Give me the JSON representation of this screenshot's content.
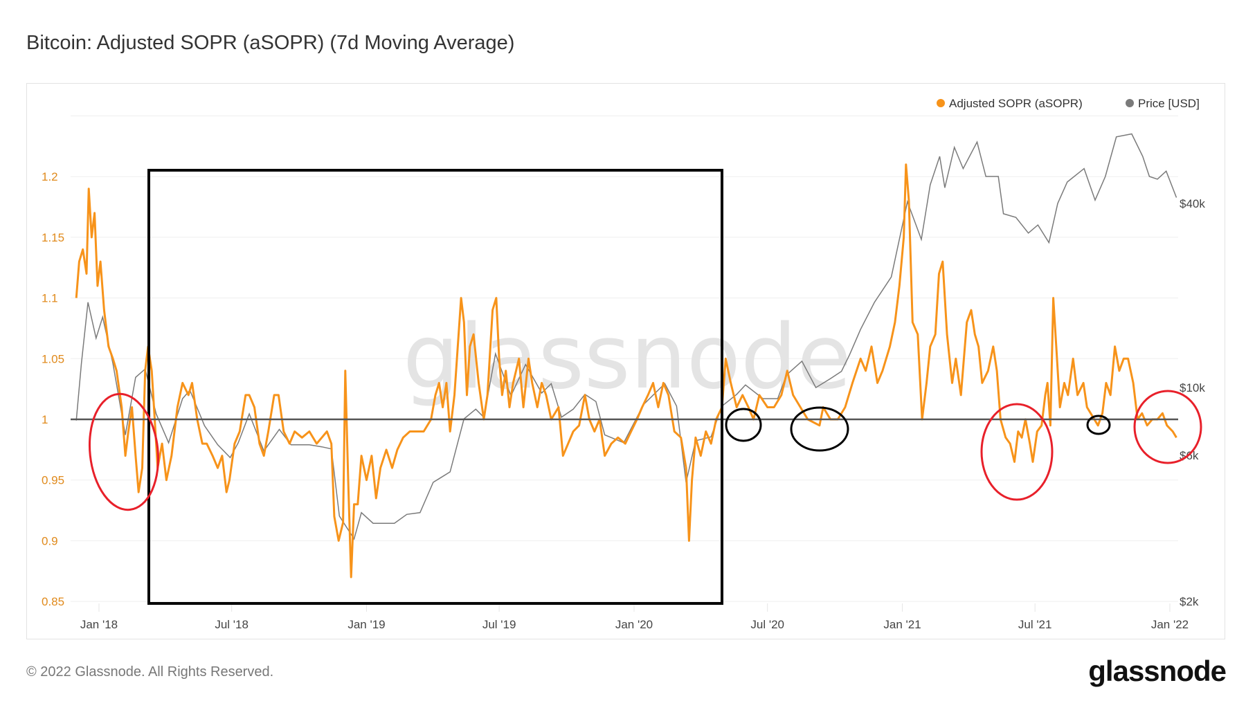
{
  "title": "Bitcoin: Adjusted SOPR (aSOPR) (7d Moving Average)",
  "footer": {
    "copyright": "© 2022 Glassnode. All Rights Reserved.",
    "logo": "glassnode"
  },
  "watermark": "glassnode",
  "colors": {
    "sopr": "#F7931A",
    "price": "#7a7a7a",
    "baseline": "#555555",
    "annotation_box": "#000000",
    "annotation_red": "#e8202a",
    "annotation_black": "#000000"
  },
  "chart_data": {
    "type": "line",
    "title": "Bitcoin: Adjusted SOPR (aSOPR) (7d Moving Average)",
    "legend": {
      "placement": "top-right",
      "items": [
        "Adjusted SOPR (aSOPR)",
        "Price [USD]"
      ]
    },
    "x_ticks": [
      "Jan '18",
      "Jul '18",
      "Jan '19",
      "Jul '19",
      "Jan '20",
      "Jul '20",
      "Jan '21",
      "Jul '21",
      "Jan '22"
    ],
    "x_tick_dates": [
      "2018-01-01",
      "2018-07-01",
      "2019-01-01",
      "2019-07-01",
      "2020-01-01",
      "2020-07-01",
      "2021-01-01",
      "2021-07-01",
      "2022-01-01"
    ],
    "xlim": [
      "2017-12-01",
      "2022-01-12"
    ],
    "y_left": {
      "ticks": [
        "0.85",
        "0.9",
        "0.95",
        "1",
        "1.05",
        "1.1",
        "1.15",
        "1.2"
      ],
      "ylim": [
        0.85,
        1.25
      ],
      "scale": "linear"
    },
    "y_right": {
      "ticks": [
        "$2k",
        "$6k",
        "$10k",
        "$40k"
      ],
      "tick_values": [
        2000,
        6000,
        10000,
        40000
      ],
      "scale": "log"
    },
    "reference_line": 1,
    "grid": true,
    "series": [
      {
        "name": "Adjusted SOPR (aSOPR)",
        "axis": "left",
        "x": [
          "2017-12-01",
          "2017-12-05",
          "2017-12-10",
          "2017-12-15",
          "2017-12-18",
          "2017-12-22",
          "2017-12-26",
          "2017-12-30",
          "2018-01-03",
          "2018-01-08",
          "2018-01-14",
          "2018-01-20",
          "2018-01-25",
          "2018-02-01",
          "2018-02-06",
          "2018-02-10",
          "2018-02-15",
          "2018-02-20",
          "2018-02-24",
          "2018-03-01",
          "2018-03-05",
          "2018-03-09",
          "2018-03-14",
          "2018-03-18",
          "2018-03-22",
          "2018-03-28",
          "2018-04-03",
          "2018-04-10",
          "2018-04-18",
          "2018-04-25",
          "2018-05-03",
          "2018-05-08",
          "2018-05-15",
          "2018-05-22",
          "2018-05-28",
          "2018-06-05",
          "2018-06-12",
          "2018-06-18",
          "2018-06-24",
          "2018-06-28",
          "2018-07-05",
          "2018-07-12",
          "2018-07-20",
          "2018-07-25",
          "2018-08-01",
          "2018-08-08",
          "2018-08-14",
          "2018-08-20",
          "2018-08-28",
          "2018-09-03",
          "2018-09-10",
          "2018-09-18",
          "2018-09-25",
          "2018-10-05",
          "2018-10-15",
          "2018-10-25",
          "2018-11-01",
          "2018-11-08",
          "2018-11-14",
          "2018-11-18",
          "2018-11-24",
          "2018-11-30",
          "2018-12-03",
          "2018-12-07",
          "2018-12-11",
          "2018-12-15",
          "2018-12-20",
          "2018-12-25",
          "2019-01-01",
          "2019-01-08",
          "2019-01-14",
          "2019-01-20",
          "2019-01-28",
          "2019-02-05",
          "2019-02-12",
          "2019-02-20",
          "2019-03-01",
          "2019-03-10",
          "2019-03-20",
          "2019-03-30",
          "2019-04-05",
          "2019-04-10",
          "2019-04-15",
          "2019-04-20",
          "2019-04-25",
          "2019-05-01",
          "2019-05-10",
          "2019-05-14",
          "2019-05-18",
          "2019-05-22",
          "2019-05-27",
          "2019-06-03",
          "2019-06-10",
          "2019-06-15",
          "2019-06-22",
          "2019-06-27",
          "2019-07-01",
          "2019-07-05",
          "2019-07-10",
          "2019-07-15",
          "2019-07-20",
          "2019-07-28",
          "2019-08-03",
          "2019-08-10",
          "2019-08-15",
          "2019-08-22",
          "2019-08-28",
          "2019-09-03",
          "2019-09-10",
          "2019-09-20",
          "2019-09-26",
          "2019-10-03",
          "2019-10-10",
          "2019-10-18",
          "2019-10-26",
          "2019-11-01",
          "2019-11-08",
          "2019-11-15",
          "2019-11-22",
          "2019-12-01",
          "2019-12-10",
          "2019-12-20",
          "2019-12-28",
          "2020-01-05",
          "2020-01-12",
          "2020-01-20",
          "2020-01-27",
          "2020-02-03",
          "2020-02-10",
          "2020-02-17",
          "2020-02-25",
          "2020-03-05",
          "2020-03-12",
          "2020-03-16",
          "2020-03-20",
          "2020-03-25",
          "2020-04-01",
          "2020-04-08",
          "2020-04-15",
          "2020-04-22",
          "2020-04-30",
          "2020-05-05",
          "2020-05-12",
          "2020-05-20",
          "2020-05-28",
          "2020-06-05",
          "2020-06-12",
          "2020-06-20",
          "2020-07-01",
          "2020-07-10",
          "2020-07-20",
          "2020-07-28",
          "2020-08-05",
          "2020-08-15",
          "2020-08-25",
          "2020-09-10",
          "2020-09-15",
          "2020-09-25",
          "2020-10-05",
          "2020-10-15",
          "2020-10-25",
          "2020-11-05",
          "2020-11-12",
          "2020-11-20",
          "2020-11-28",
          "2020-12-05",
          "2020-12-15",
          "2020-12-22",
          "2020-12-28",
          "2021-01-03",
          "2021-01-06",
          "2021-01-10",
          "2021-01-15",
          "2021-01-22",
          "2021-01-28",
          "2021-02-03",
          "2021-02-08",
          "2021-02-15",
          "2021-02-20",
          "2021-02-25",
          "2021-03-03",
          "2021-03-10",
          "2021-03-15",
          "2021-03-22",
          "2021-03-30",
          "2021-04-05",
          "2021-04-10",
          "2021-04-15",
          "2021-04-20",
          "2021-04-28",
          "2021-05-05",
          "2021-05-10",
          "2021-05-15",
          "2021-05-22",
          "2021-05-28",
          "2021-06-03",
          "2021-06-08",
          "2021-06-13",
          "2021-06-18",
          "2021-06-24",
          "2021-06-28",
          "2021-07-04",
          "2021-07-10",
          "2021-07-15",
          "2021-07-18",
          "2021-07-22",
          "2021-07-26",
          "2021-07-30",
          "2021-08-04",
          "2021-08-10",
          "2021-08-15",
          "2021-08-22",
          "2021-08-28",
          "2021-09-05",
          "2021-09-10",
          "2021-09-15",
          "2021-09-20",
          "2021-09-25",
          "2021-10-01",
          "2021-10-06",
          "2021-10-12",
          "2021-10-18",
          "2021-10-24",
          "2021-10-30",
          "2021-11-05",
          "2021-11-12",
          "2021-11-18",
          "2021-11-24",
          "2021-12-01",
          "2021-12-08",
          "2021-12-15",
          "2021-12-22",
          "2021-12-28",
          "2022-01-05",
          "2022-01-10"
        ],
        "values": [
          1.1,
          1.13,
          1.14,
          1.12,
          1.19,
          1.15,
          1.17,
          1.11,
          1.13,
          1.09,
          1.06,
          1.05,
          1.04,
          1.01,
          0.97,
          0.99,
          1.01,
          0.97,
          0.94,
          0.96,
          1.04,
          1.06,
          1.04,
          1.0,
          0.96,
          0.98,
          0.95,
          0.97,
          1.01,
          1.03,
          1.02,
          1.03,
          1.0,
          0.98,
          0.98,
          0.97,
          0.96,
          0.97,
          0.94,
          0.95,
          0.98,
          0.99,
          1.02,
          1.02,
          1.01,
          0.98,
          0.97,
          0.99,
          1.02,
          1.02,
          0.99,
          0.98,
          0.99,
          0.985,
          0.99,
          0.98,
          0.985,
          0.99,
          0.98,
          0.92,
          0.9,
          0.915,
          1.04,
          0.95,
          0.87,
          0.93,
          0.93,
          0.97,
          0.95,
          0.97,
          0.935,
          0.96,
          0.975,
          0.96,
          0.975,
          0.985,
          0.99,
          0.99,
          0.99,
          1.0,
          1.02,
          1.03,
          1.01,
          1.03,
          0.99,
          1.02,
          1.1,
          1.08,
          1.02,
          1.06,
          1.07,
          1.03,
          1.0,
          1.02,
          1.09,
          1.1,
          1.05,
          1.02,
          1.04,
          1.01,
          1.03,
          1.05,
          1.01,
          1.05,
          1.03,
          1.01,
          1.03,
          1.02,
          1.0,
          1.01,
          0.97,
          0.98,
          0.99,
          0.995,
          1.02,
          1.0,
          0.99,
          1.0,
          0.97,
          0.98,
          0.985,
          0.98,
          0.99,
          1.0,
          1.01,
          1.02,
          1.03,
          1.01,
          1.03,
          1.02,
          0.99,
          0.985,
          0.96,
          0.9,
          0.95,
          0.985,
          0.97,
          0.99,
          0.98,
          1.0,
          1.01,
          1.05,
          1.03,
          1.01,
          1.02,
          1.01,
          1.0,
          1.02,
          1.01,
          1.01,
          1.02,
          1.04,
          1.02,
          1.01,
          1.0,
          0.995,
          1.01,
          1.0,
          1.0,
          1.01,
          1.03,
          1.05,
          1.04,
          1.06,
          1.03,
          1.04,
          1.06,
          1.08,
          1.11,
          1.15,
          1.21,
          1.18,
          1.08,
          1.07,
          1.0,
          1.03,
          1.06,
          1.07,
          1.12,
          1.13,
          1.07,
          1.03,
          1.05,
          1.02,
          1.08,
          1.09,
          1.07,
          1.06,
          1.03,
          1.04,
          1.06,
          1.04,
          1.0,
          0.985,
          0.98,
          0.965,
          0.99,
          0.985,
          1.0,
          0.98,
          0.965,
          0.99,
          0.995,
          1.02,
          1.03,
          0.995,
          1.1,
          1.06,
          1.01,
          1.03,
          1.02,
          1.05,
          1.02,
          1.03,
          1.01,
          1.005,
          1.0,
          0.995,
          1.005,
          1.03,
          1.02,
          1.06,
          1.04,
          1.05,
          1.05,
          1.03,
          1.0,
          1.005,
          0.995,
          1.0,
          1.0,
          1.005,
          0.995,
          0.99,
          0.985
        ]
      },
      {
        "name": "Price [USD]",
        "axis": "right",
        "x": [
          "2017-12-01",
          "2017-12-08",
          "2017-12-17",
          "2017-12-28",
          "2018-01-06",
          "2018-01-20",
          "2018-02-06",
          "2018-02-20",
          "2018-03-05",
          "2018-03-20",
          "2018-04-06",
          "2018-04-25",
          "2018-05-05",
          "2018-05-25",
          "2018-06-12",
          "2018-06-29",
          "2018-07-10",
          "2018-07-25",
          "2018-08-14",
          "2018-09-04",
          "2018-09-20",
          "2018-10-15",
          "2018-11-01",
          "2018-11-14",
          "2018-11-25",
          "2018-12-15",
          "2018-12-25",
          "2019-01-10",
          "2019-02-08",
          "2019-02-25",
          "2019-03-15",
          "2019-04-02",
          "2019-04-25",
          "2019-05-14",
          "2019-05-30",
          "2019-06-10",
          "2019-06-26",
          "2019-07-17",
          "2019-08-06",
          "2019-08-28",
          "2019-09-10",
          "2019-09-24",
          "2019-10-10",
          "2019-10-26",
          "2019-11-10",
          "2019-11-22",
          "2019-12-18",
          "2020-01-14",
          "2020-02-12",
          "2020-02-28",
          "2020-03-12",
          "2020-03-25",
          "2020-04-15",
          "2020-04-30",
          "2020-05-20",
          "2020-06-01",
          "2020-06-25",
          "2020-07-15",
          "2020-07-27",
          "2020-08-17",
          "2020-09-05",
          "2020-09-25",
          "2020-10-10",
          "2020-10-21",
          "2020-11-05",
          "2020-11-24",
          "2020-12-17",
          "2021-01-08",
          "2021-01-27",
          "2021-02-08",
          "2021-02-21",
          "2021-02-28",
          "2021-03-13",
          "2021-03-25",
          "2021-04-13",
          "2021-04-25",
          "2021-05-12",
          "2021-05-19",
          "2021-06-05",
          "2021-06-22",
          "2021-07-05",
          "2021-07-20",
          "2021-08-01",
          "2021-08-14",
          "2021-09-06",
          "2021-09-21",
          "2021-10-05",
          "2021-10-20",
          "2021-11-10",
          "2021-11-25",
          "2021-12-04",
          "2021-12-15",
          "2021-12-27",
          "2022-01-10"
        ],
        "values": [
          7800,
          12000,
          19000,
          14500,
          17000,
          12000,
          7000,
          10800,
          11500,
          8200,
          6600,
          9200,
          9800,
          7500,
          6500,
          5900,
          6600,
          8200,
          6200,
          7300,
          6500,
          6500,
          6400,
          6300,
          3800,
          3200,
          3900,
          3600,
          3600,
          3850,
          3900,
          4900,
          5300,
          7900,
          8500,
          8000,
          12900,
          9400,
          11900,
          9600,
          10300,
          8000,
          8500,
          9500,
          9000,
          7000,
          6600,
          8800,
          10300,
          8700,
          4900,
          6700,
          6900,
          8700,
          9500,
          10200,
          9200,
          9200,
          11000,
          12200,
          10000,
          10700,
          11300,
          12800,
          15500,
          19000,
          23000,
          40500,
          30500,
          46000,
          57000,
          45000,
          61000,
          52000,
          63500,
          49000,
          49000,
          37000,
          36000,
          32000,
          34000,
          29800,
          40000,
          47000,
          52000,
          41000,
          49000,
          66000,
          67500,
          57000,
          49000,
          48000,
          51000,
          41800
        ]
      }
    ]
  }
}
